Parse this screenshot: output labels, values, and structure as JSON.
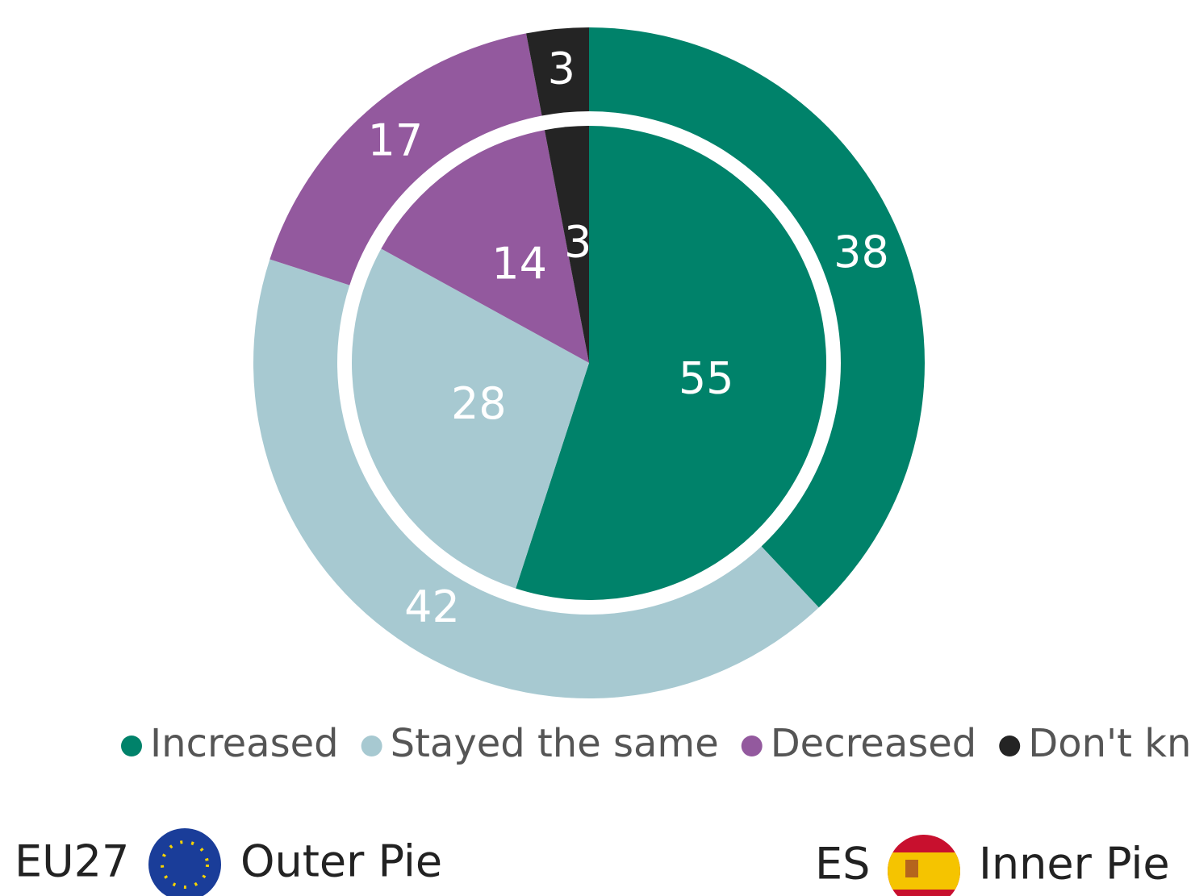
{
  "chart_data": {
    "type": "pie",
    "categories": [
      "Increased",
      "Stayed the same",
      "Decreased",
      "Don't know"
    ],
    "colors": [
      "#00826a",
      "#a7c9d1",
      "#93599e",
      "#242424"
    ],
    "series": [
      {
        "name": "EU27",
        "ring": "Outer Pie",
        "values": [
          38,
          42,
          17,
          3
        ]
      },
      {
        "name": "ES",
        "ring": "Inner Pie",
        "values": [
          55,
          28,
          14,
          3
        ]
      }
    ]
  }
}
